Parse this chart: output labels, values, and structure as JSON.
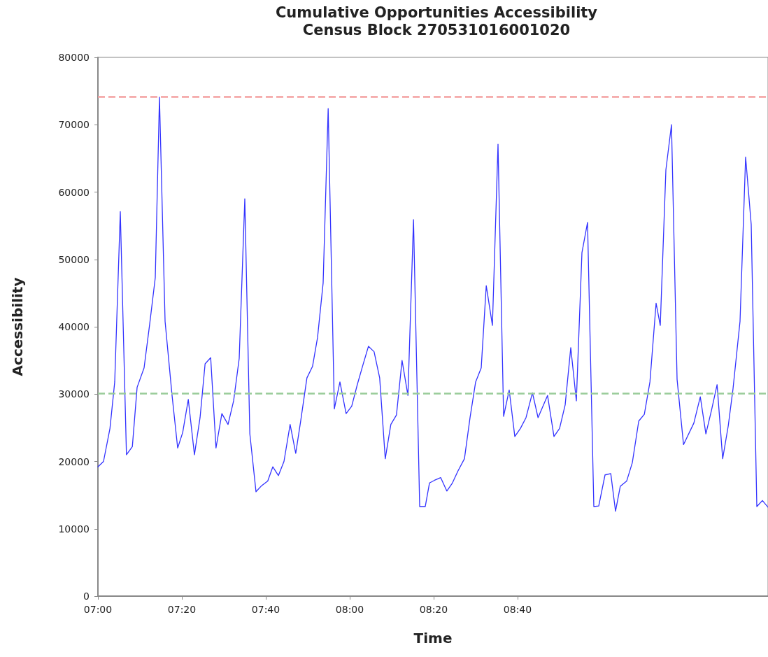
{
  "chart_data": {
    "type": "line",
    "title": "Cumulative Opportunities Accessibility",
    "subtitle": "Census Block 270531016001020",
    "xlabel": "Time",
    "ylabel": "Accessibility",
    "x": [
      7,
      7.0222,
      7.0478,
      7.0667,
      7.0889,
      7.1133,
      7.1367,
      7.1556,
      7.1833,
      7.2056,
      7.2278,
      7.2444,
      7.2667,
      7.2944,
      7.3167,
      7.3367,
      7.3589,
      7.3833,
      7.4056,
      7.4256,
      7.4478,
      7.4689,
      7.4922,
      7.5167,
      7.5389,
      7.5611,
      7.5833,
      7.6033,
      7.6278,
      7.65,
      7.6744,
      7.6944,
      7.7167,
      7.7389,
      7.7633,
      7.7856,
      7.8056,
      7.83,
      7.8522,
      7.8722,
      7.8944,
      7.9144,
      7.9389,
      7.9611,
      7.9856,
      8.0078,
      8.03,
      8.0522,
      8.0744,
      8.0967,
      8.1189,
      8.1411,
      8.1633,
      8.1856,
      8.2078,
      8.2311,
      8.2533,
      8.2778,
      8.3,
      8.3167,
      8.3367,
      8.3611,
      8.3856,
      8.4078,
      8.43,
      8.4556,
      8.4778,
      8.5,
      8.5222,
      8.5422,
      8.5667,
      8.5889,
      8.6111,
      8.6333,
      8.6556,
      8.6778,
      8.7,
      8.7256,
      8.7478,
      8.7856,
      8.8111,
      8.8333,
      8.8556,
      8.8778,
      8.9,
      8.9222,
      8.9444,
      8.9694,
      8.9889,
      9.0139,
      9.0367,
      9.0556,
      9.0744,
      9.1,
      9.1222,
      9.1478,
      9.17,
      9.1922,
      9.2167,
      9.2333,
      9.2556,
      9.2778,
      9.3,
      9.3256,
      9.3667,
      9.3922,
      9.4144,
      9.4367,
      9.4589,
      9.4811,
      9.5033,
      9.5222,
      9.55,
      9.5722,
      9.5944,
      9.6167,
      9.6389,
      9.6611
    ],
    "series": [
      {
        "color": "#3333ff",
        "values": [
          19200,
          20000,
          24900,
          31800,
          57100,
          21000,
          22200,
          31000,
          33900,
          40400,
          47300,
          74100,
          40800,
          29800,
          22000,
          24300,
          29200,
          21000,
          26500,
          34500,
          35400,
          22000,
          27100,
          25500,
          29000,
          35300,
          59000,
          24100,
          15500,
          16400,
          17100,
          19200,
          17900,
          20000,
          25500,
          21200,
          26100,
          32400,
          34100,
          38400,
          46500,
          72400,
          27800,
          31800,
          27100,
          28200,
          31400,
          34300,
          37100,
          36300,
          32400,
          20400,
          25500,
          26900,
          35000,
          29800,
          55900,
          13300,
          13300,
          16800,
          17200,
          17600,
          15600,
          16800,
          18600,
          20400,
          26500,
          31800,
          33900,
          46100,
          40200,
          67100,
          26700,
          30600,
          23700,
          24900,
          26500,
          30200,
          26500,
          29800,
          23700,
          24900,
          28400,
          36900,
          29000,
          51000,
          55500,
          13300,
          13400,
          18000,
          18200,
          12600,
          16300,
          17100,
          19800,
          26000,
          27000,
          31800,
          43500,
          40200,
          63300,
          70000,
          32200,
          22500,
          25700,
          29600,
          24100,
          27600,
          31400,
          20400,
          25300,
          30800,
          40800,
          65200,
          55200,
          13300,
          14200,
          13200
        ]
      }
    ],
    "xlim": [
      7,
      9.6611
    ],
    "xticks": [
      {
        "value": 7,
        "label": "07:00"
      },
      {
        "value": 7.3333,
        "label": "07:20"
      },
      {
        "value": 7.6667,
        "label": "07:40"
      },
      {
        "value": 8,
        "label": "08:00"
      },
      {
        "value": 8.3333,
        "label": "08:20"
      },
      {
        "value": 8.6667,
        "label": "08:40"
      }
    ],
    "ylim": [
      0,
      80000
    ],
    "yticks": [
      0,
      10000,
      20000,
      30000,
      40000,
      50000,
      60000,
      70000,
      80000
    ],
    "ref_lines": [
      {
        "axis": "y",
        "value": 74200,
        "color": "#f4a0a0",
        "line_style": "dashed"
      },
      {
        "axis": "y",
        "value": 30100,
        "color": "#99cc99",
        "line_style": "dashed"
      }
    ],
    "grid": false,
    "marker": "none",
    "line_style": "solid"
  }
}
